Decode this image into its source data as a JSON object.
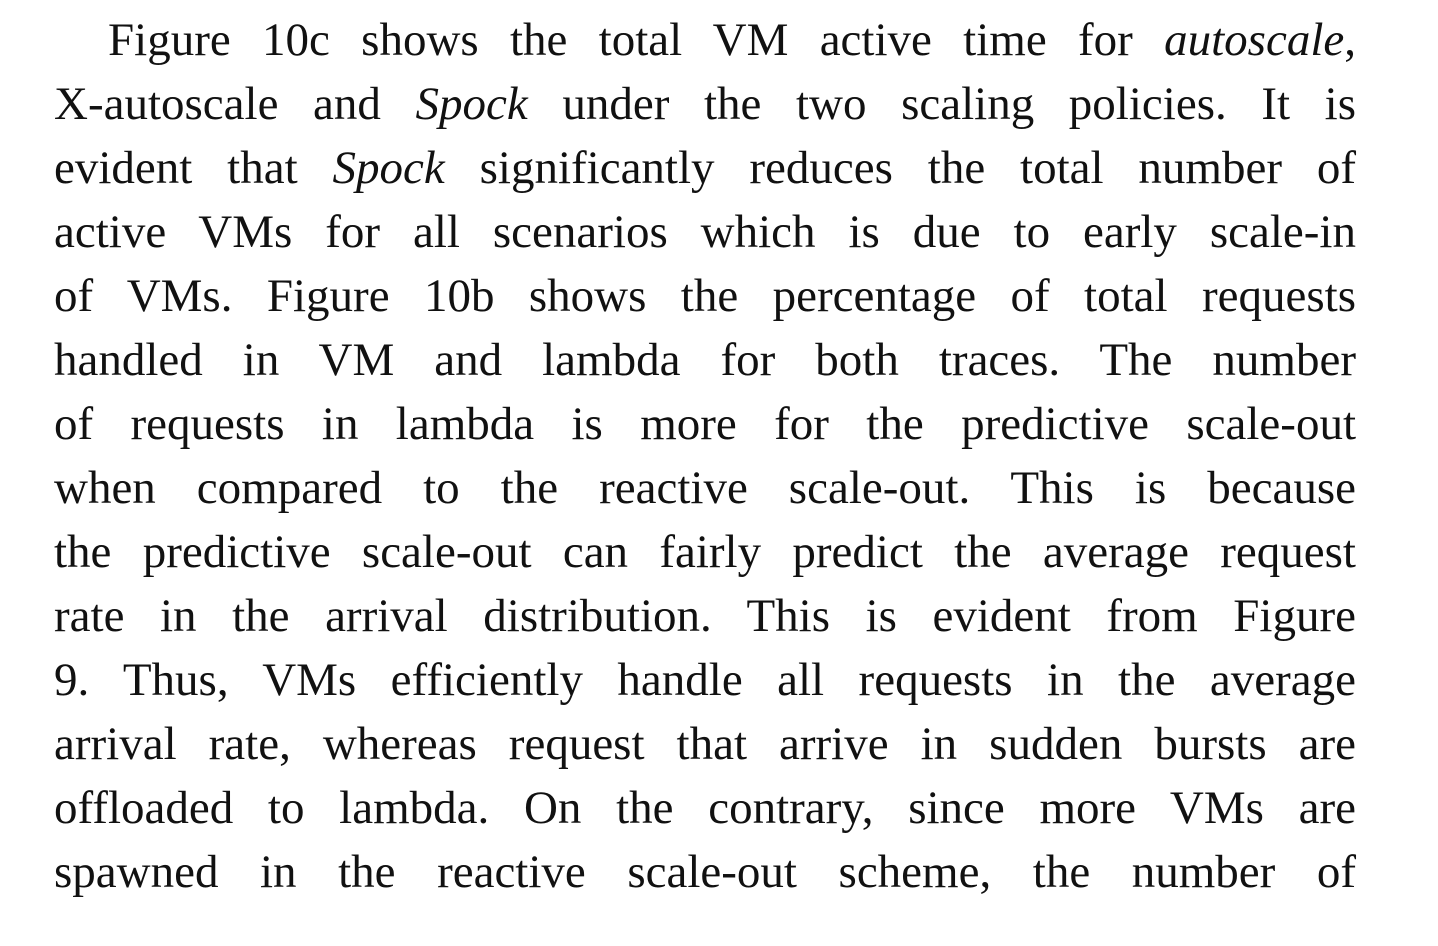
{
  "paragraph": {
    "lines": [
      [
        "Figure 10c shows the total VM active time for ",
        "autoscale",
        ","
      ],
      [
        "X-autoscale and ",
        "Spock",
        " under the two scaling policies. It is"
      ],
      [
        "evident that ",
        "Spock",
        " significantly reduces the total number of"
      ],
      [
        "active VMs for all scenarios which is due to early scale-in",
        "",
        ""
      ],
      [
        "of VMs. Figure 10b shows the percentage of total requests",
        "",
        ""
      ],
      [
        "handled in VM and lambda for both traces. The number",
        "",
        ""
      ],
      [
        "of requests in lambda is more for the predictive scale-out",
        "",
        ""
      ],
      [
        "when compared to the reactive scale-out. This is because",
        "",
        ""
      ],
      [
        "the predictive scale-out can fairly predict the average request",
        "",
        ""
      ],
      [
        "rate in the arrival distribution. This is evident from Figure",
        "",
        ""
      ],
      [
        "9. Thus, VMs efficiently handle all requests in the average",
        "",
        ""
      ],
      [
        "arrival rate, whereas request that arrive in sudden bursts are",
        "",
        ""
      ],
      [
        "offloaded to lambda. On the contrary, since more VMs are",
        "",
        ""
      ],
      [
        "spawned in the reactive scale-out scheme, the number of",
        "",
        ""
      ]
    ]
  }
}
